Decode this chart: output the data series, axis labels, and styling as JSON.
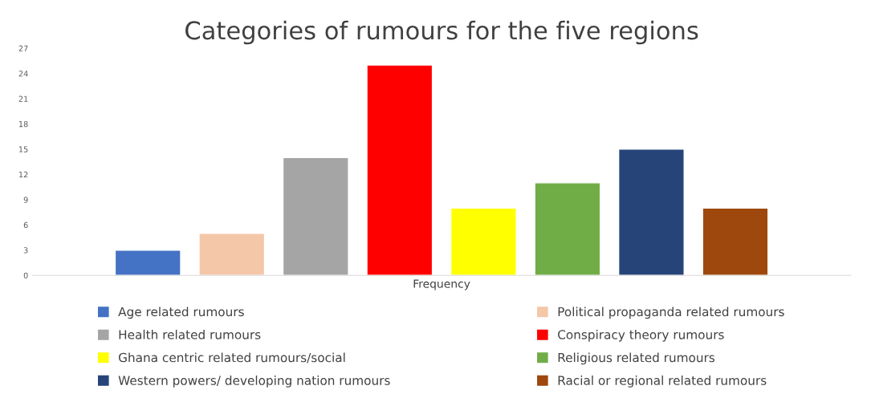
{
  "chart_data": {
    "type": "bar",
    "title": "Categories of rumours for the five regions",
    "categories": [
      "Frequency"
    ],
    "series": [
      {
        "name": "Age related rumours",
        "color": "#4472c4",
        "values": [
          3
        ]
      },
      {
        "name": "Political propaganda related rumours",
        "color": "#f4c7a8",
        "values": [
          5
        ]
      },
      {
        "name": "Health related rumours",
        "color": "#a5a5a5",
        "values": [
          14
        ]
      },
      {
        "name": "Conspiracy theory rumours",
        "color": "#ff0000",
        "values": [
          25
        ]
      },
      {
        "name": "Ghana centric related rumours/social",
        "color": "#ffff00",
        "values": [
          8
        ]
      },
      {
        "name": "Religious related rumours",
        "color": "#70ad47",
        "values": [
          11
        ]
      },
      {
        "name": "Western powers/ developing nation rumours",
        "color": "#264478",
        "values": [
          15
        ]
      },
      {
        "name": "Racial or regional related rumours",
        "color": "#9e480e",
        "values": [
          8
        ]
      }
    ],
    "ylim": [
      0,
      27
    ],
    "yticks": [
      0,
      3,
      6,
      9,
      12,
      15,
      18,
      21,
      24,
      27
    ],
    "grid": false,
    "legend": "bottom"
  }
}
